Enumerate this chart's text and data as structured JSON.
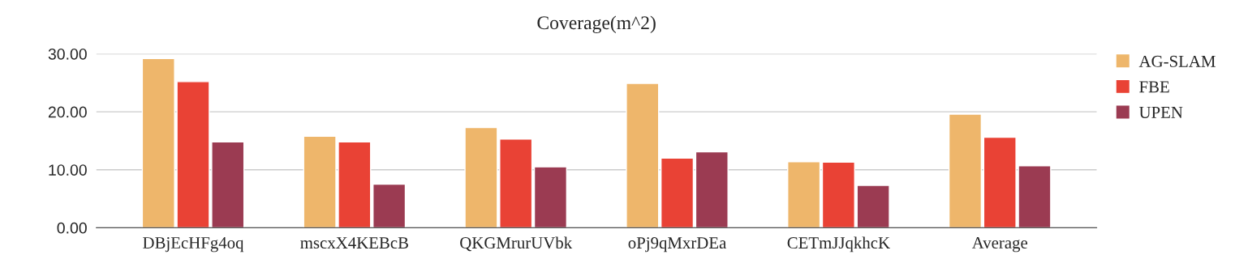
{
  "chart_data": {
    "type": "bar",
    "title": "Coverage(m^2)",
    "categories": [
      "DBjEcHFg4oq",
      "mscxX4KEBcB",
      "QKGMrurUVbk",
      "oPj9qMxrDEa",
      "CETmJJqkhcK",
      "Average"
    ],
    "series": [
      {
        "name": "AG-SLAM",
        "color": "#eeb66b",
        "values": [
          29.2,
          15.8,
          17.3,
          24.9,
          11.4,
          19.6
        ]
      },
      {
        "name": "FBE",
        "color": "#e94235",
        "values": [
          25.2,
          14.8,
          15.3,
          12.0,
          11.3,
          15.6
        ]
      },
      {
        "name": "UPEN",
        "color": "#9b3b52",
        "values": [
          14.8,
          7.5,
          10.5,
          13.1,
          7.3,
          10.7
        ]
      }
    ],
    "ylim": [
      0,
      30
    ],
    "yticks": [
      {
        "value": 0,
        "label": "0.00"
      },
      {
        "value": 10,
        "label": "10.00"
      },
      {
        "value": 20,
        "label": "20.00"
      },
      {
        "value": 30,
        "label": "30.00"
      }
    ],
    "grid": "y",
    "legend": "right"
  }
}
